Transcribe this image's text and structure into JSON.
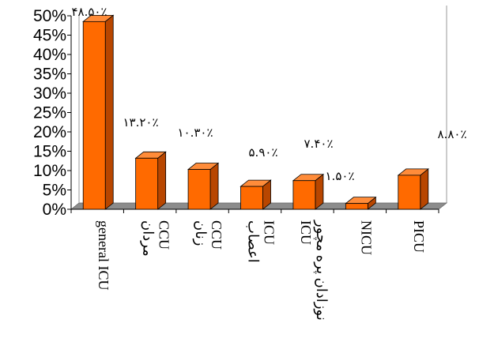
{
  "chart_data": {
    "type": "bar",
    "title": "",
    "xlabel": "",
    "ylabel": "",
    "ylim": [
      0,
      50
    ],
    "y_ticks": [
      "0%",
      "5%",
      "10%",
      "15%",
      "20%",
      "25%",
      "30%",
      "35%",
      "40%",
      "45%",
      "50%"
    ],
    "categories": [
      "general ICU",
      "CCU مردان",
      "CCU زنان",
      "ICU اعصاب",
      "نوزادان پره مچور ICU",
      "NICU",
      "PICU"
    ],
    "category_lines": [
      [
        "general ICU"
      ],
      [
        "CCU",
        "مردان"
      ],
      [
        "CCU",
        "زنان"
      ],
      [
        "ICU",
        "اعصاب"
      ],
      [
        "نوزادان پره مچور",
        "ICU"
      ],
      [
        "NICU"
      ],
      [
        "PICU"
      ]
    ],
    "values": [
      48.5,
      13.2,
      10.3,
      5.9,
      7.4,
      1.5,
      8.8
    ],
    "data_labels": [
      "۴۸.۵۰٪",
      "۱۳.۲۰٪",
      "۱۰.۳۰٪",
      "۵.۹۰٪",
      "۷.۴۰٪",
      "۱.۵۰٪",
      "۸.۸۰٪"
    ],
    "grid": false,
    "legend": "none",
    "colors": {
      "bar_front": "#ff6a00",
      "bar_side": "#b84600",
      "bar_top": "#ff8c3a",
      "floor": "#8c8c8c",
      "axis": "#000000",
      "back_wall_line": "#9a9a9a"
    }
  }
}
